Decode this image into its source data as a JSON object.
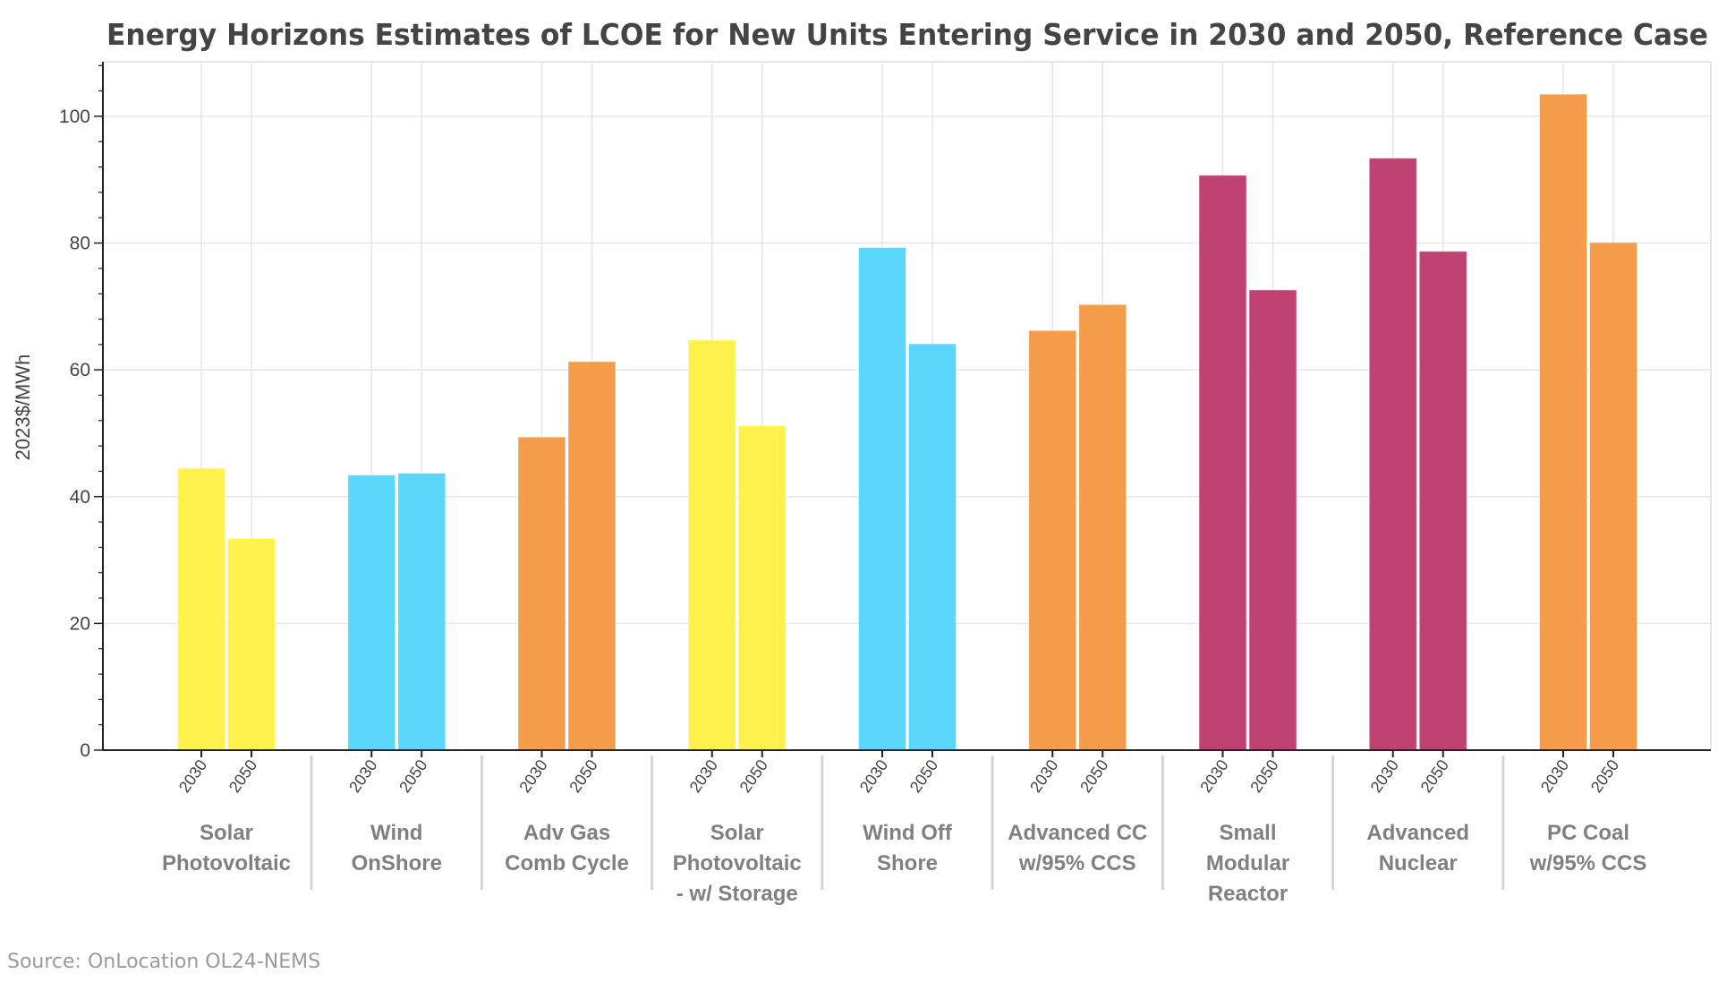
{
  "chart_data": {
    "type": "bar",
    "title": "Energy Horizons Estimates of LCOE for New Units Entering Service in 2030 and 2050, Reference Case",
    "xlabel": "",
    "ylabel": "2023$/MWh",
    "ylim": [
      0,
      108.6
    ],
    "yticks": [
      0,
      20,
      40,
      60,
      80,
      100
    ],
    "grid": true,
    "years": [
      "2030",
      "2050"
    ],
    "categories": [
      {
        "lines": [
          "Solar",
          "Photovoltaic"
        ],
        "color": "#FFF24F",
        "values": [
          44.5,
          33.4
        ]
      },
      {
        "lines": [
          "Wind",
          "OnShore"
        ],
        "color": "#5AD7FB",
        "values": [
          43.4,
          43.7
        ]
      },
      {
        "lines": [
          "Adv Gas",
          "Comb Cycle"
        ],
        "color": "#F59C4A",
        "values": [
          49.4,
          61.3
        ]
      },
      {
        "lines": [
          "Solar",
          "Photovoltaic",
          "- w/ Storage"
        ],
        "color": "#FFF24F",
        "values": [
          64.7,
          51.2
        ]
      },
      {
        "lines": [
          "Wind Off",
          "Shore"
        ],
        "color": "#5AD7FB",
        "values": [
          79.3,
          64.1
        ]
      },
      {
        "lines": [
          "Advanced CC",
          "w/95% CCS"
        ],
        "color": "#F59C4A",
        "values": [
          66.2,
          70.3
        ]
      },
      {
        "lines": [
          "Small",
          "Modular",
          "Reactor"
        ],
        "color": "#BF4273",
        "values": [
          90.7,
          72.6
        ]
      },
      {
        "lines": [
          "Advanced",
          "Nuclear"
        ],
        "color": "#BF4273",
        "values": [
          93.4,
          78.7
        ]
      },
      {
        "lines": [
          "PC Coal",
          "w/95% CCS"
        ],
        "color": "#F59C4A",
        "values": [
          103.5,
          80.1
        ]
      }
    ]
  },
  "source": "Source: OnLocation OL24-NEMS"
}
